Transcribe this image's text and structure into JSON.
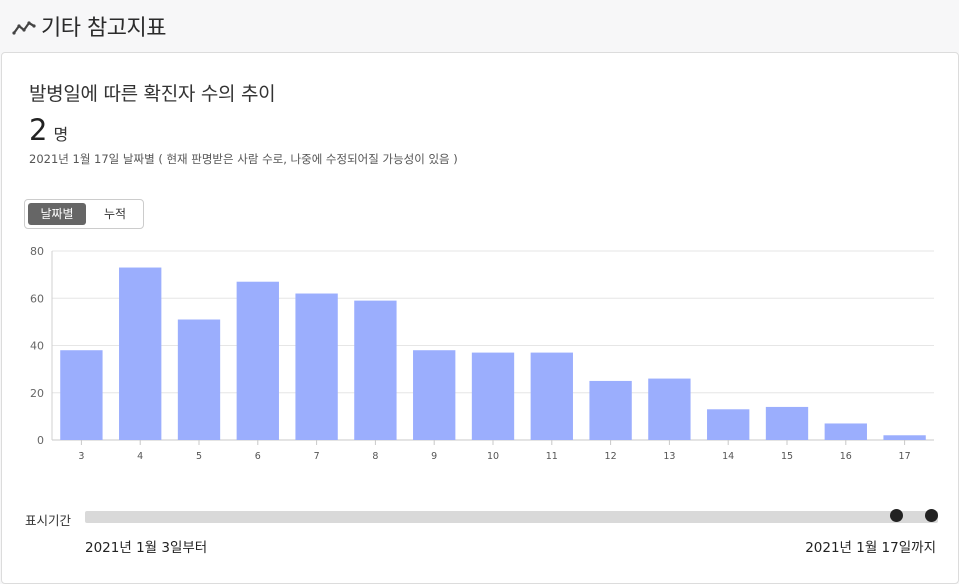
{
  "header": {
    "title": "기타 참고지표",
    "icon": "trend-line-icon"
  },
  "card": {
    "title": "발병일에 따른 확진자 수의 추이",
    "count_value": "2",
    "count_unit": "명",
    "note": "2021년 1월 17일 날짜별 ( 현재 판명받은 사람 수로, 나중에 수정되어질 가능성이 있음 )"
  },
  "toggle": {
    "active_label": "날짜별",
    "inactive_label": "누적"
  },
  "chart_data": {
    "type": "bar",
    "categories": [
      "3",
      "4",
      "5",
      "6",
      "7",
      "8",
      "9",
      "10",
      "11",
      "12",
      "13",
      "14",
      "15",
      "16",
      "17"
    ],
    "values": [
      38,
      73,
      51,
      67,
      62,
      59,
      38,
      37,
      37,
      25,
      26,
      13,
      14,
      7,
      2
    ],
    "yticks": [
      0,
      20,
      40,
      60,
      80
    ],
    "ylim": [
      0,
      80
    ],
    "grid": true,
    "bar_color": "#9baefd",
    "title": "",
    "xlabel": "",
    "ylabel": ""
  },
  "range": {
    "label": "표시기간",
    "start_text": "2021년 1월 3일부터",
    "end_text": "2021년 1월 17일까지"
  }
}
